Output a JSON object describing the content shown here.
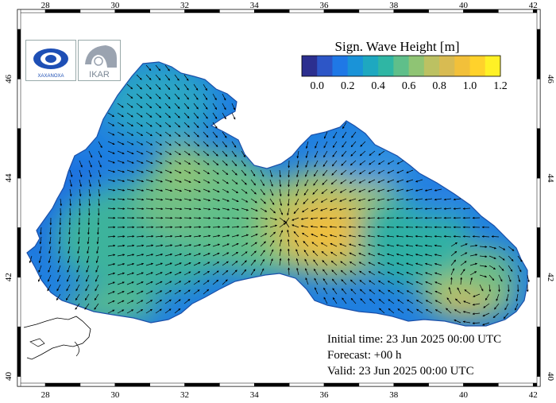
{
  "map": {
    "lon_ticks": [
      28,
      30,
      32,
      34,
      36,
      38,
      40,
      42
    ],
    "lat_ticks": [
      40,
      42,
      44,
      46
    ],
    "lon_range": [
      27.2,
      42.2
    ],
    "lat_range": [
      39.8,
      47.4
    ]
  },
  "legend": {
    "title": "Sign. Wave Height [m]",
    "ticks": [
      "0.0",
      "0.2",
      "0.4",
      "0.6",
      "0.8",
      "1.0",
      "1.2"
    ],
    "colors": [
      "#2c2f8f",
      "#2d56c7",
      "#1f78e6",
      "#1a93d8",
      "#1ea8c0",
      "#2fb6a4",
      "#5fbf8a",
      "#8fc474",
      "#bcc162",
      "#d8bb52",
      "#f2c03a",
      "#ffd22b",
      "#fff126"
    ]
  },
  "info": {
    "initial_time": "Initial time: 23 Jun 2025 00:00 UTC",
    "forecast": "Forecast: +00 h",
    "valid": "Valid: 23 Jun 2025 00:00 UTC"
  },
  "logos": {
    "left_text": "XAXANOXA",
    "right_text": "IKAR"
  }
}
